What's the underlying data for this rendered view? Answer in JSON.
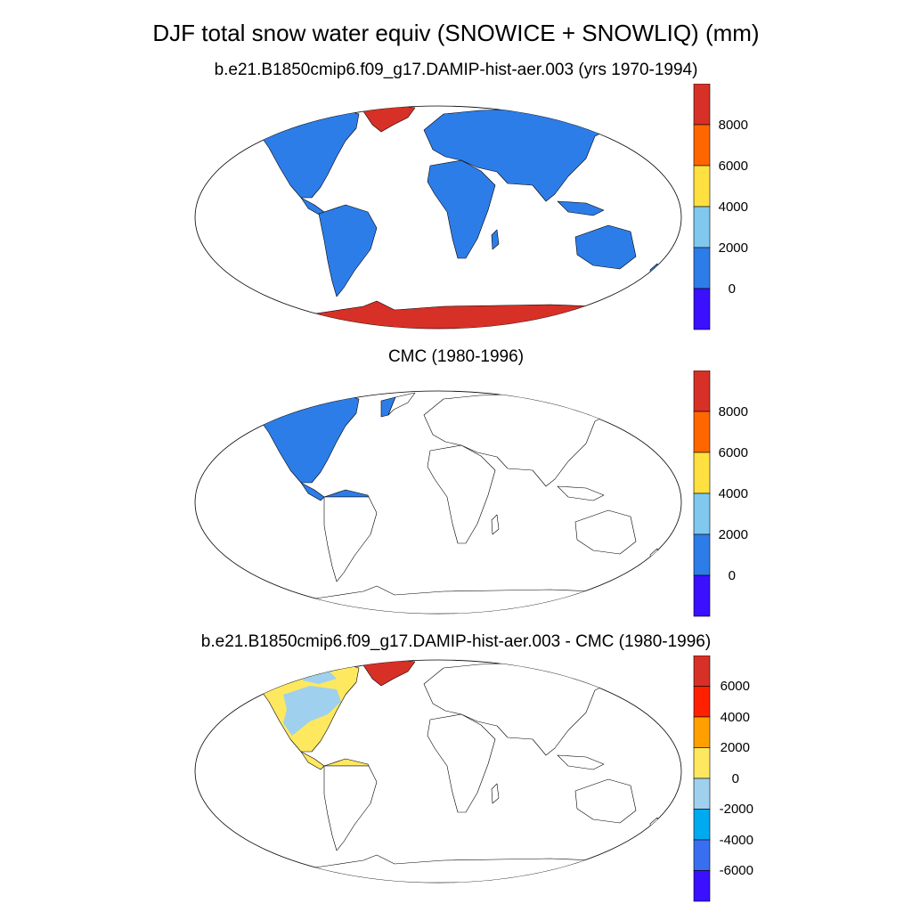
{
  "title": "DJF total snow water equiv (SNOWICE + SNOWLIQ) (mm)",
  "panels": [
    {
      "title": "b.e21.B1850cmip6.f09_g17.DAMIP-hist-aer.003 (yrs 1970-1994)",
      "colorbar": {
        "labels": [
          "8000",
          "6000",
          "4000",
          "2000",
          "0"
        ],
        "colors": [
          "#d73027",
          "#ff6600",
          "#fee040",
          "#80c8ee",
          "#2d7de8",
          "#3a10ff"
        ]
      }
    },
    {
      "title": "CMC (1980-1996)",
      "colorbar": {
        "labels": [
          "8000",
          "6000",
          "4000",
          "2000",
          "0"
        ],
        "colors": [
          "#d73027",
          "#ff6600",
          "#fee040",
          "#80c8ee",
          "#2d7de8",
          "#3a10ff"
        ]
      }
    },
    {
      "title": "b.e21.B1850cmip6.f09_g17.DAMIP-hist-aer.003 - CMC (1980-1996)",
      "colorbar": {
        "labels": [
          "6000",
          "4000",
          "2000",
          "0",
          "-2000",
          "-4000",
          "-6000"
        ],
        "colors": [
          "#d73027",
          "#ff2000",
          "#ffa000",
          "#fee860",
          "#9fd0ee",
          "#00aaf0",
          "#3a6ef0",
          "#3a10ff"
        ]
      }
    }
  ],
  "colors": {
    "low_fill": "#2d7de8",
    "ice_fill": "#d73027",
    "diff_low": "#fee860",
    "diff_mid": "#9fd0ee"
  }
}
